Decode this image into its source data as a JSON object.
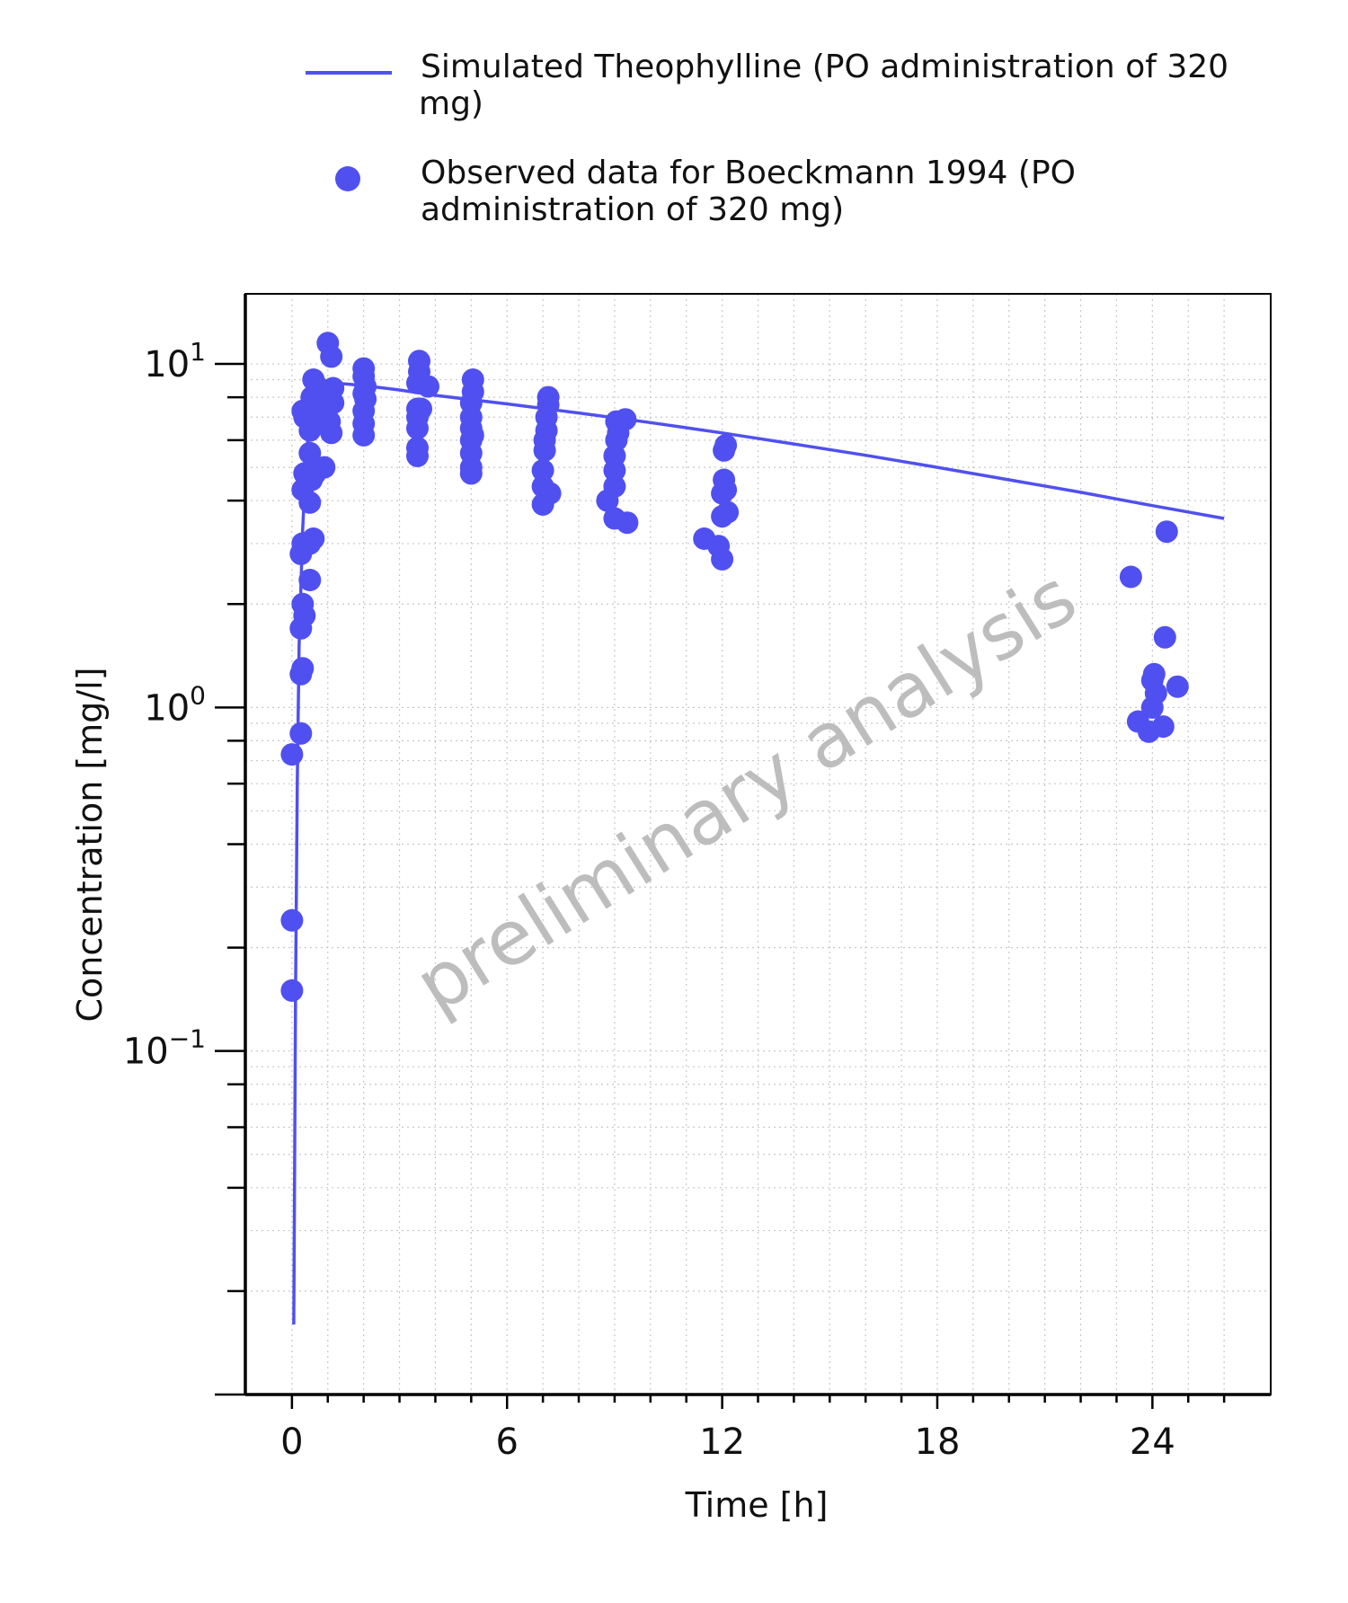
{
  "chart_data": {
    "type": "scatter",
    "xlabel": "Time [h]",
    "ylabel": "Concentration [mg/l]",
    "xlim": [
      -1.3,
      27.3
    ],
    "ylim": [
      0.01,
      16
    ],
    "x_ticks": [
      0,
      6,
      12,
      18,
      24
    ],
    "x_tick_labels": [
      "0",
      "6",
      "12",
      "18",
      "24"
    ],
    "y_scale": "log",
    "y_ticks": [
      0.1,
      1,
      10
    ],
    "y_tick_labels": [
      {
        "base": "10",
        "exp": "−1"
      },
      {
        "base": "10",
        "exp": "0"
      },
      {
        "base": "10",
        "exp": "1"
      }
    ],
    "grid": true,
    "legend_position": "top",
    "watermark": "preliminary analysis",
    "colors": {
      "series": "#5050f0",
      "axis": "#000000",
      "grid": "#c8c8c8"
    },
    "series": [
      {
        "name": "Simulated Theophylline (PO administration of 320 mg)",
        "type": "line",
        "x": [
          0.05,
          0.1,
          0.15,
          0.2,
          0.3,
          0.4,
          0.5,
          0.7,
          1.0,
          1.3,
          2.0,
          3.0,
          4.0,
          6.0,
          8.0,
          10.0,
          12.0,
          14.0,
          16.0,
          18.0,
          20.0,
          22.0,
          24.0,
          26.0
        ],
        "y": [
          0.016,
          0.15,
          0.6,
          1.5,
          3.3,
          5.4,
          7.0,
          8.4,
          8.75,
          8.78,
          8.65,
          8.4,
          8.1,
          7.65,
          7.2,
          6.75,
          6.3,
          5.85,
          5.42,
          5.0,
          4.6,
          4.23,
          3.87,
          3.55
        ]
      },
      {
        "name": "Observed data for Boeckmann 1994 (PO administration of 320 mg)",
        "type": "scatter",
        "x": [
          0.0,
          0.0,
          0.0,
          0.25,
          0.25,
          0.25,
          0.25,
          0.3,
          0.3,
          0.3,
          0.3,
          0.3,
          0.35,
          0.35,
          0.35,
          0.5,
          0.5,
          0.5,
          0.5,
          0.5,
          0.55,
          0.55,
          0.6,
          0.6,
          0.6,
          0.65,
          0.65,
          0.7,
          0.7,
          0.75,
          0.9,
          0.9,
          0.95,
          1.0,
          1.0,
          1.0,
          1.05,
          1.05,
          1.1,
          1.1,
          1.15,
          1.15,
          2.0,
          2.0,
          2.0,
          2.0,
          2.0,
          2.0,
          2.05,
          2.05,
          3.5,
          3.5,
          3.5,
          3.5,
          3.5,
          3.5,
          3.55,
          3.55,
          3.6,
          3.8,
          5.0,
          5.0,
          5.0,
          5.0,
          5.0,
          5.0,
          5.0,
          5.05,
          5.05,
          5.05,
          7.0,
          7.0,
          7.0,
          7.05,
          7.05,
          7.1,
          7.1,
          7.15,
          7.15,
          7.2,
          8.8,
          9.0,
          9.0,
          9.0,
          9.0,
          9.05,
          9.05,
          9.1,
          9.3,
          9.35,
          11.5,
          11.9,
          12.0,
          12.0,
          12.0,
          12.05,
          12.05,
          12.1,
          12.1,
          12.15,
          23.4,
          23.6,
          23.9,
          24.0,
          24.0,
          24.05,
          24.1,
          24.3,
          24.35,
          24.4,
          24.7
        ],
        "y": [
          0.15,
          0.24,
          0.73,
          0.84,
          1.25,
          1.7,
          2.8,
          1.3,
          2.0,
          3.0,
          4.3,
          7.3,
          1.85,
          4.8,
          7.0,
          2.35,
          3.0,
          3.95,
          5.5,
          6.4,
          4.6,
          8.0,
          3.1,
          7.4,
          9.0,
          4.8,
          6.8,
          7.6,
          8.6,
          7.1,
          5.0,
          7.2,
          8.0,
          7.5,
          6.6,
          11.5,
          8.4,
          6.8,
          10.5,
          6.3,
          8.5,
          7.7,
          6.2,
          6.7,
          7.3,
          8.2,
          9.2,
          9.7,
          7.9,
          8.6,
          5.4,
          5.7,
          6.5,
          7.0,
          7.4,
          8.8,
          9.5,
          10.2,
          7.4,
          8.6,
          4.8,
          5.0,
          5.5,
          6.0,
          6.5,
          7.0,
          7.7,
          8.3,
          9.0,
          6.2,
          3.9,
          4.4,
          4.9,
          5.6,
          6.0,
          6.4,
          7.0,
          7.6,
          8.0,
          4.2,
          4.0,
          3.55,
          4.4,
          4.9,
          5.4,
          6.0,
          6.8,
          6.3,
          6.9,
          3.45,
          3.1,
          2.95,
          2.7,
          3.6,
          4.2,
          4.6,
          5.6,
          5.8,
          4.3,
          3.7,
          2.4,
          0.91,
          0.85,
          1.0,
          1.2,
          1.25,
          1.1,
          0.88,
          1.6,
          3.25,
          1.15
        ]
      }
    ]
  },
  "legend": {
    "items": [
      {
        "label_line1": "Simulated Theophylline (PO administration of 320",
        "label_line2": "mg)"
      },
      {
        "label_line1": "Observed data for Boeckmann 1994 (PO",
        "label_line2": "administration of 320 mg)"
      }
    ]
  }
}
